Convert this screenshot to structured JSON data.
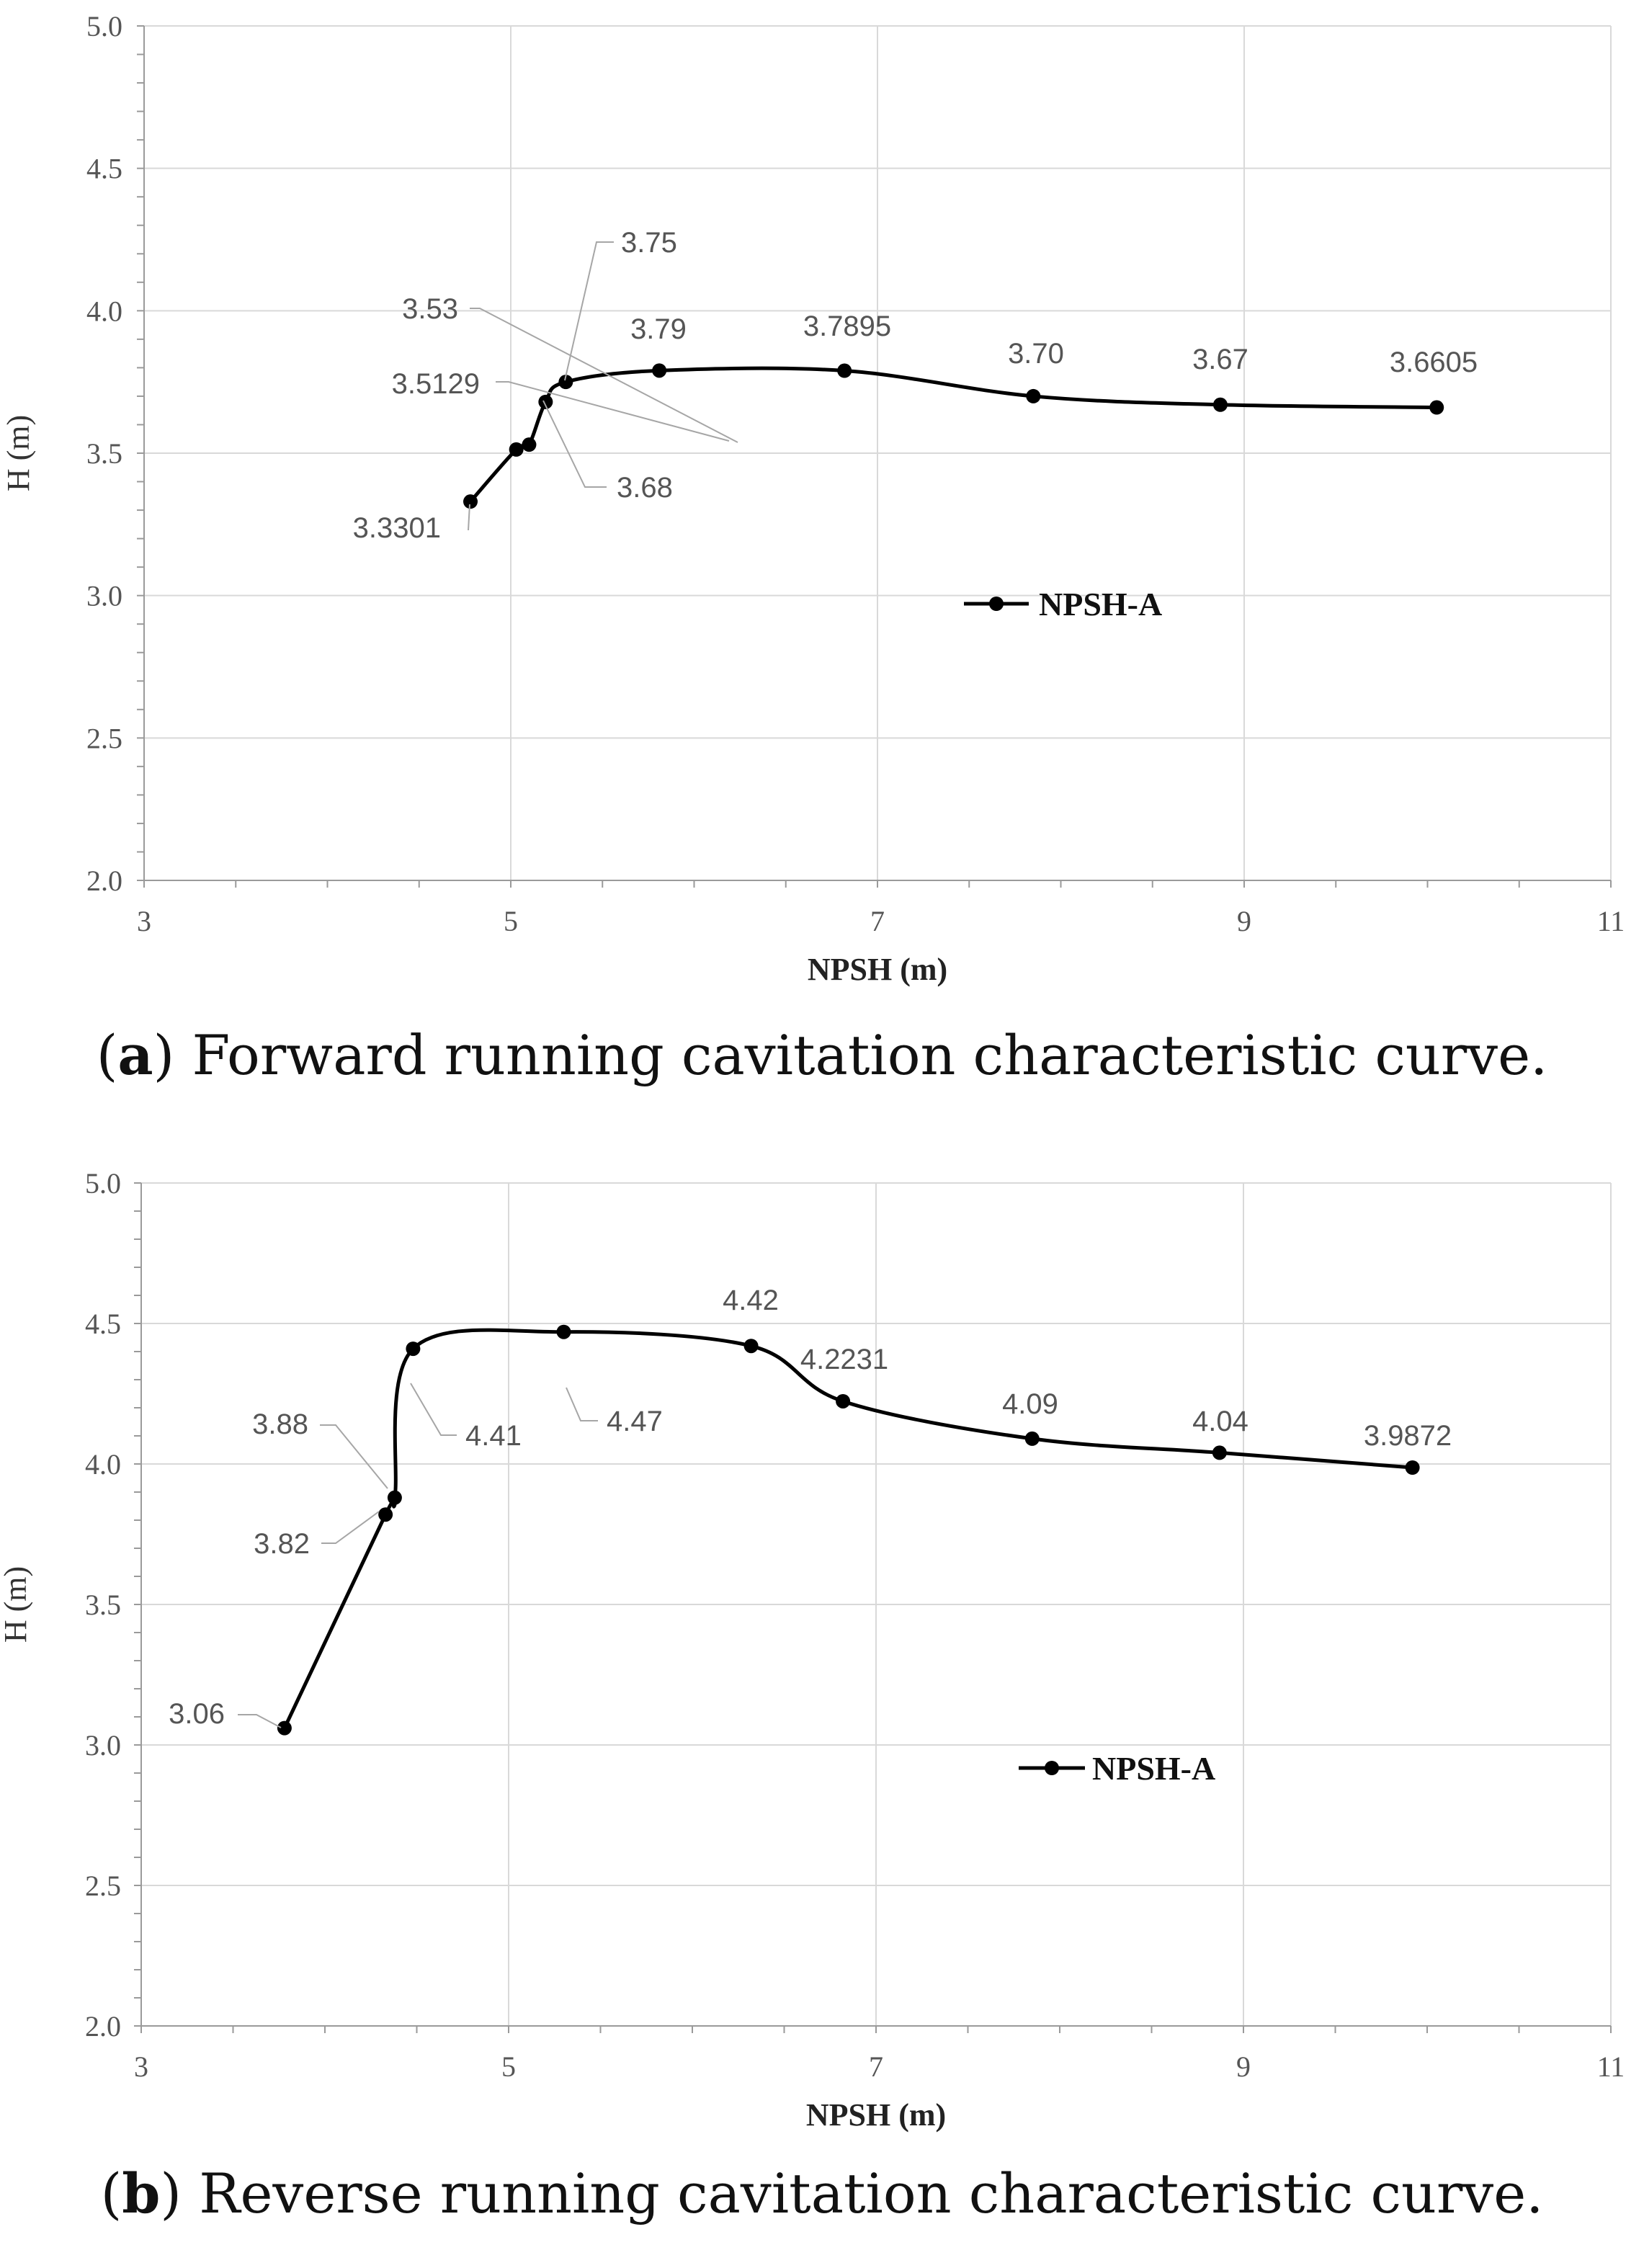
{
  "chart_data": [
    {
      "type": "line",
      "panel_letter": "a",
      "caption": "Forward running cavitation characteristic curve.",
      "xlabel": "NPSH (m)",
      "ylabel": "H (m)",
      "xlim": [
        3,
        11
      ],
      "ylim": [
        2.0,
        5.0
      ],
      "xticks": [
        "3",
        "5",
        "7",
        "9",
        "11"
      ],
      "yticks": [
        "2.0",
        "2.5",
        "3.0",
        "3.5",
        "4.0",
        "4.5",
        "5.0"
      ],
      "legend": "NPSH-A",
      "series": [
        {
          "name": "NPSH-A",
          "points": [
            {
              "x": 4.78,
              "y": 3.3301,
              "label": "3.3301"
            },
            {
              "x": 5.03,
              "y": 3.5129,
              "label": "3.5129"
            },
            {
              "x": 5.1,
              "y": 3.53,
              "label": "3.53"
            },
            {
              "x": 5.19,
              "y": 3.68,
              "label": "3.68"
            },
            {
              "x": 5.3,
              "y": 3.75,
              "label": "3.75"
            },
            {
              "x": 5.81,
              "y": 3.79,
              "label": "3.79"
            },
            {
              "x": 6.82,
              "y": 3.7895,
              "label": "3.7895"
            },
            {
              "x": 7.85,
              "y": 3.7,
              "label": "3.70"
            },
            {
              "x": 8.87,
              "y": 3.67,
              "label": "3.67"
            },
            {
              "x": 10.05,
              "y": 3.6605,
              "label": "3.6605"
            }
          ]
        }
      ]
    },
    {
      "type": "line",
      "panel_letter": "b",
      "caption": "Reverse running cavitation characteristic curve.",
      "xlabel": "NPSH (m)",
      "ylabel": "H (m)",
      "xlim": [
        3,
        11
      ],
      "ylim": [
        2.0,
        5.0
      ],
      "xticks": [
        "3",
        "5",
        "7",
        "9",
        "11"
      ],
      "yticks": [
        "2.0",
        "2.5",
        "3.0",
        "3.5",
        "4.0",
        "4.5",
        "5.0"
      ],
      "legend": "NPSH-A",
      "series": [
        {
          "name": "NPSH-A",
          "points": [
            {
              "x": 3.78,
              "y": 3.06,
              "label": "3.06"
            },
            {
              "x": 4.33,
              "y": 3.82,
              "label": "3.82"
            },
            {
              "x": 4.38,
              "y": 3.88,
              "label": "3.88"
            },
            {
              "x": 4.48,
              "y": 4.41,
              "label": "4.41"
            },
            {
              "x": 5.3,
              "y": 4.47,
              "label": "4.47"
            },
            {
              "x": 6.32,
              "y": 4.42,
              "label": "4.42"
            },
            {
              "x": 6.82,
              "y": 4.2231,
              "label": "4.2231"
            },
            {
              "x": 7.85,
              "y": 4.09,
              "label": "4.09"
            },
            {
              "x": 8.87,
              "y": 4.04,
              "label": "4.04"
            },
            {
              "x": 9.92,
              "y": 3.9872,
              "label": "3.9872"
            }
          ]
        }
      ]
    }
  ]
}
